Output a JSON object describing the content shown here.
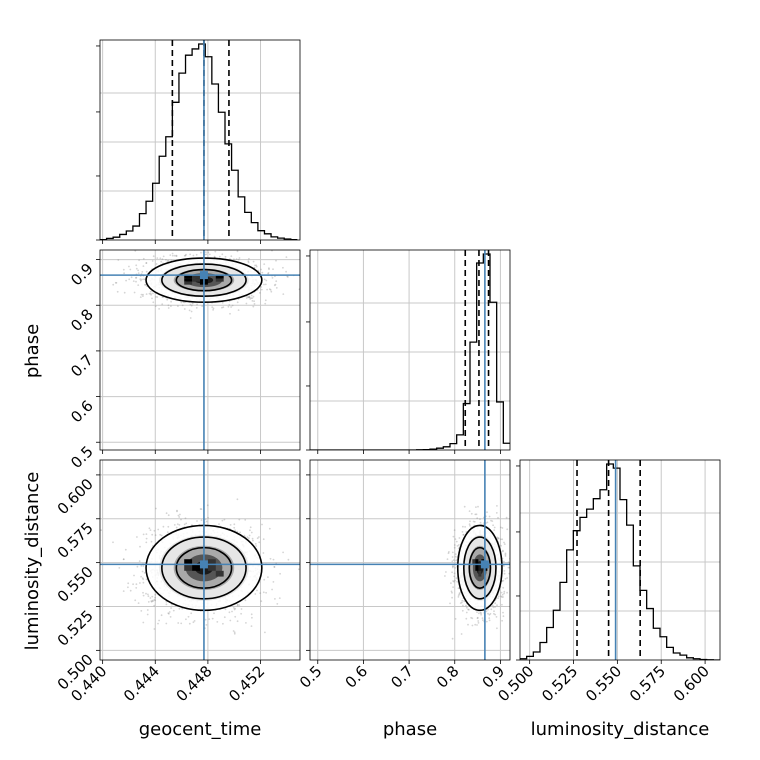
{
  "chart_data": {
    "type": "corner",
    "parameters": [
      "geocent_time",
      "phase",
      "luminosity_distance"
    ],
    "truths": {
      "geocent_time": 0.4477,
      "phase": 0.866,
      "luminosity_distance": 0.549
    },
    "colors": {
      "truth": "#4682b4",
      "hist": "#000000",
      "grid": "#c8c8c8",
      "points": "#888888"
    },
    "grid": true,
    "axes": {
      "geocent_time": {
        "label": "geocent_time",
        "range": [
          0.4398,
          0.455
        ],
        "ticks": [
          0.44,
          0.444,
          0.448,
          0.452
        ],
        "tick_labels": [
          "0.440",
          "0.444",
          "0.448",
          "0.452"
        ]
      },
      "phase": {
        "label": "phase",
        "range": [
          0.483,
          0.921
        ],
        "ticks": [
          0.5,
          0.6,
          0.7,
          0.8,
          0.9
        ],
        "tick_labels": [
          "0.5",
          "0.6",
          "0.7",
          "0.8",
          "0.9"
        ]
      },
      "luminosity_distance": {
        "label": "luminosity_distance",
        "range": [
          0.4945,
          0.6085
        ],
        "ticks": [
          0.5,
          0.525,
          0.55,
          0.575,
          0.6
        ],
        "tick_labels": [
          "0.500",
          "0.525",
          "0.550",
          "0.575",
          "0.600"
        ]
      }
    },
    "marginals": {
      "geocent_time": {
        "bin_edges": [
          0.4398,
          0.4403,
          0.4408,
          0.4413,
          0.4418,
          0.4423,
          0.4428,
          0.4433,
          0.4438,
          0.4443,
          0.4448,
          0.4453,
          0.4458,
          0.4463,
          0.4468,
          0.4473,
          0.4478,
          0.4483,
          0.4488,
          0.4493,
          0.4498,
          0.4503,
          0.4508,
          0.4513,
          0.4518,
          0.4523,
          0.4528,
          0.4533,
          0.4538,
          0.4543,
          0.4548
        ],
        "counts": [
          1,
          5,
          9,
          18,
          29,
          45,
          85,
          125,
          183,
          270,
          333,
          444,
          538,
          596,
          616,
          632,
          591,
          503,
          412,
          310,
          225,
          139,
          89,
          56,
          30,
          20,
          10,
          6,
          3,
          1
        ],
        "quantiles": [
          0.4453,
          0.4477,
          0.4496
        ]
      },
      "phase": {
        "bin_edges": [
          0.483,
          0.4976,
          0.5122,
          0.5268,
          0.5414,
          0.556,
          0.5706,
          0.5852,
          0.5998,
          0.6144,
          0.629,
          0.6436,
          0.6582,
          0.6728,
          0.6874,
          0.702,
          0.7166,
          0.7312,
          0.7458,
          0.7604,
          0.775,
          0.7896,
          0.8042,
          0.8188,
          0.8334,
          0.848,
          0.8626,
          0.8772,
          0.8918,
          0.9064,
          0.921
        ],
        "counts": [
          0,
          0,
          0,
          0,
          0,
          0,
          0,
          0,
          0,
          0,
          0,
          0,
          0,
          0,
          0,
          0,
          1,
          2,
          4,
          9,
          16,
          32,
          76,
          233,
          541,
          938,
          983,
          741,
          241,
          34
        ],
        "quantiles": [
          0.823,
          0.853,
          0.874
        ]
      },
      "luminosity_distance": {
        "bin_edges": [
          0.4945,
          0.4983,
          0.5021,
          0.5059,
          0.5097,
          0.5135,
          0.5173,
          0.5211,
          0.5249,
          0.5287,
          0.5325,
          0.5363,
          0.5401,
          0.5439,
          0.5477,
          0.5515,
          0.5553,
          0.5591,
          0.5629,
          0.5667,
          0.5705,
          0.5743,
          0.5781,
          0.5819,
          0.5857,
          0.5895,
          0.5933,
          0.5971,
          0.6009,
          0.6047,
          0.6085
        ],
        "counts": [
          5,
          15,
          33,
          72,
          134,
          205,
          320,
          454,
          533,
          588,
          622,
          665,
          702,
          808,
          791,
          661,
          556,
          388,
          287,
          212,
          131,
          96,
          52,
          29,
          20,
          9,
          5,
          2,
          1,
          0
        ],
        "quantiles": [
          0.527,
          0.545,
          0.563
        ]
      }
    },
    "joint": [
      {
        "x": "geocent_time",
        "y": "phase",
        "x_mean": 0.4477,
        "x_sd": 0.002,
        "y_mean": 0.855,
        "y_sd": 0.022
      },
      {
        "x": "geocent_time",
        "y": "luminosity_distance",
        "x_mean": 0.4477,
        "x_sd": 0.002,
        "y_mean": 0.547,
        "y_sd": 0.011
      },
      {
        "x": "phase",
        "y": "luminosity_distance",
        "x_mean": 0.855,
        "x_sd": 0.022,
        "y_mean": 0.547,
        "y_sd": 0.011
      }
    ]
  }
}
